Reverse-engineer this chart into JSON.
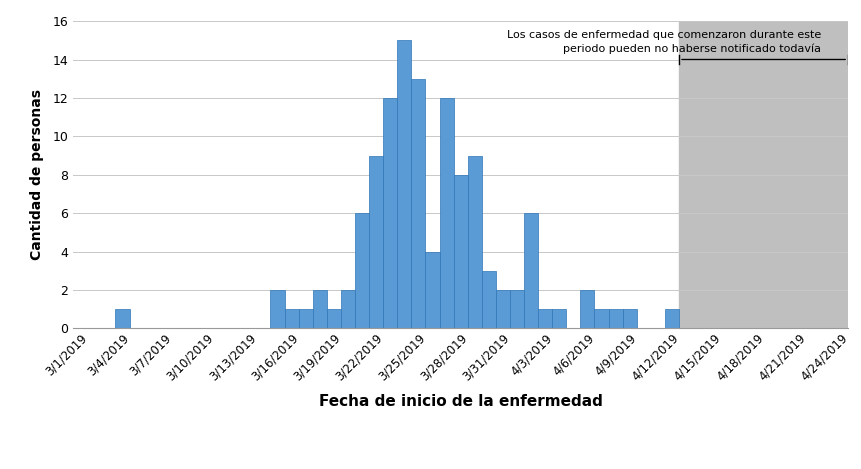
{
  "dates": [
    "3/1/2019",
    "3/2/2019",
    "3/3/2019",
    "3/4/2019",
    "3/5/2019",
    "3/6/2019",
    "3/7/2019",
    "3/8/2019",
    "3/9/2019",
    "3/10/2019",
    "3/11/2019",
    "3/12/2019",
    "3/13/2019",
    "3/14/2019",
    "3/15/2019",
    "3/16/2019",
    "3/17/2019",
    "3/18/2019",
    "3/19/2019",
    "3/20/2019",
    "3/21/2019",
    "3/22/2019",
    "3/23/2019",
    "3/24/2019",
    "3/25/2019",
    "3/26/2019",
    "3/27/2019",
    "3/28/2019",
    "3/29/2019",
    "3/30/2019",
    "3/31/2019",
    "4/1/2019",
    "4/2/2019",
    "4/3/2019",
    "4/4/2019",
    "4/5/2019",
    "4/6/2019",
    "4/7/2019",
    "4/8/2019",
    "4/9/2019",
    "4/10/2019",
    "4/11/2019",
    "4/12/2019",
    "4/13/2019",
    "4/14/2019",
    "4/15/2019",
    "4/16/2019",
    "4/17/2019",
    "4/18/2019",
    "4/19/2019",
    "4/20/2019",
    "4/21/2019",
    "4/22/2019",
    "4/23/2019",
    "4/24/2019"
  ],
  "values": [
    0,
    0,
    0,
    1,
    0,
    0,
    0,
    0,
    0,
    0,
    0,
    0,
    0,
    0,
    2,
    1,
    1,
    2,
    1,
    2,
    6,
    9,
    12,
    15,
    13,
    4,
    12,
    8,
    9,
    3,
    2,
    2,
    6,
    1,
    1,
    0,
    2,
    1,
    1,
    1,
    0,
    0,
    1,
    0,
    0,
    0,
    0,
    0,
    0,
    0,
    0,
    0,
    0,
    0,
    0
  ],
  "bar_color": "#5B9BD5",
  "bar_edgecolor": "#2E75B6",
  "shade_color": "#BFBFBF",
  "shade_start_index": 43,
  "shade_end_index": 54,
  "xlabel": "Fecha de inicio de la enfermedad",
  "ylabel": "Cantidad de personas",
  "yticks": [
    0,
    2,
    4,
    6,
    8,
    10,
    12,
    14,
    16
  ],
  "ylim": [
    0,
    16
  ],
  "xtick_indices": [
    0,
    3,
    6,
    9,
    12,
    15,
    18,
    21,
    24,
    27,
    30,
    33,
    36,
    39,
    42,
    45,
    48,
    51,
    54
  ],
  "xtick_labels": [
    "3/1/2019",
    "3/4/2019",
    "3/7/2019",
    "3/10/2019",
    "3/13/2019",
    "3/16/2019",
    "3/19/2019",
    "3/22/2019",
    "3/25/2019",
    "3/28/2019",
    "3/31/2019",
    "4/3/2019",
    "4/6/2019",
    "4/9/2019",
    "4/12/2019",
    "4/15/2019",
    "4/18/2019",
    "4/21/2019",
    "4/24/2019"
  ],
  "annotation_text": "Los casos de enfermedad que comenzaron durante este\nperiodo pueden no haberse notificado todavía",
  "shade_line_y": 14,
  "bar_linewidth": 0.5
}
